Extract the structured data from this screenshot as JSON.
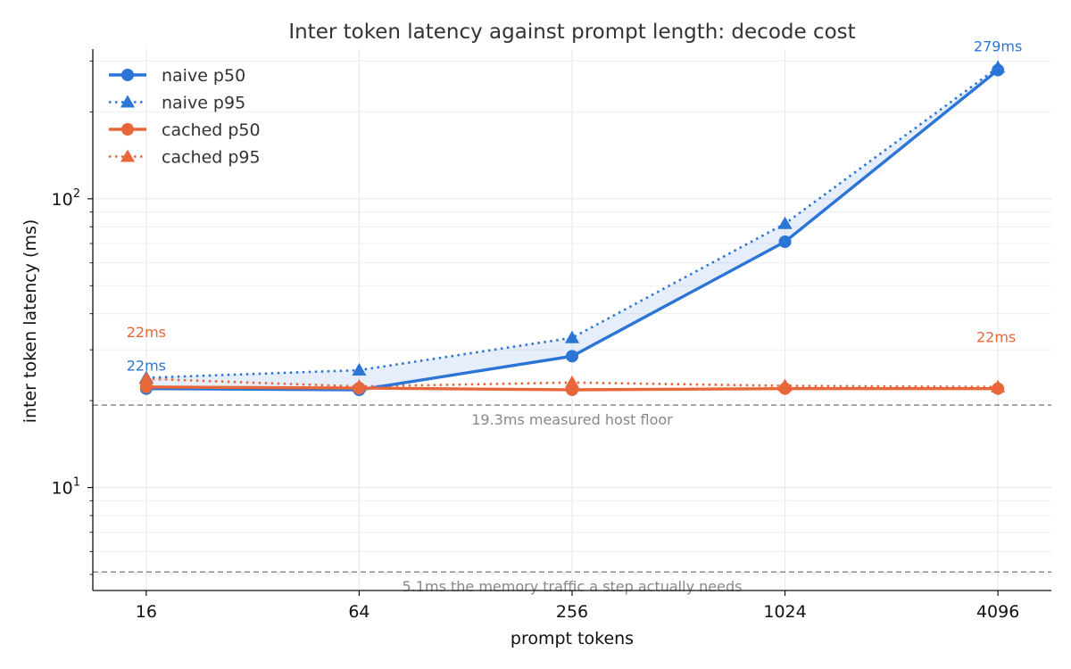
{
  "chart_data": {
    "type": "line",
    "title": "Inter token latency against prompt length: decode cost",
    "xlabel": "prompt tokens",
    "ylabel": "inter token latency (ms)",
    "x_scale": "log2",
    "y_scale": "log10",
    "x": [
      16,
      64,
      256,
      1024,
      4096
    ],
    "x_tick_labels": [
      "16",
      "64",
      "256",
      "1024",
      "4096"
    ],
    "y_ticks": [
      {
        "base": "10",
        "exp": "1",
        "value": 10
      },
      {
        "base": "10",
        "exp": "2",
        "value": 100
      }
    ],
    "ylim": [
      4.4,
      330
    ],
    "grid": true,
    "legend_position": "top-left",
    "series": [
      {
        "name": "naive p50",
        "values": [
          22,
          21.8,
          28.5,
          71,
          279
        ],
        "color": "#2b75d6",
        "style": "solid",
        "marker": "circle"
      },
      {
        "name": "naive p95",
        "values": [
          24,
          25.5,
          33,
          82,
          285
        ],
        "color": "#2b75d6",
        "style": "dotted",
        "marker": "triangle"
      },
      {
        "name": "cached p50",
        "values": [
          22.3,
          22.1,
          21.8,
          22.0,
          22.0
        ],
        "color": "#e8673a",
        "style": "solid",
        "marker": "circle"
      },
      {
        "name": "cached p95",
        "values": [
          23.8,
          22.4,
          23.1,
          22.5,
          22.3
        ],
        "color": "#e8673a",
        "style": "dotted",
        "marker": "triangle"
      }
    ],
    "bands": [
      {
        "between": [
          "naive p50",
          "naive p95"
        ],
        "color": "#2b75d6"
      }
    ],
    "reference_lines": [
      {
        "value": 19.3,
        "label": "19.3ms measured host floor",
        "label_x": 256
      },
      {
        "value": 5.1,
        "label": "5.1ms the memory traffic a step actually needs",
        "label_x": 256
      }
    ],
    "annotations": [
      {
        "text": "22ms",
        "series": "naive p50",
        "point": 0,
        "color": "#2b75d6"
      },
      {
        "text": "279ms",
        "series": "naive p50",
        "point": 4,
        "color": "#2b75d6"
      },
      {
        "text": "22ms",
        "series": "cached p50",
        "point": 0,
        "color": "#e8673a"
      },
      {
        "text": "22ms",
        "series": "cached p50",
        "point": 4,
        "color": "#e8673a"
      }
    ]
  }
}
